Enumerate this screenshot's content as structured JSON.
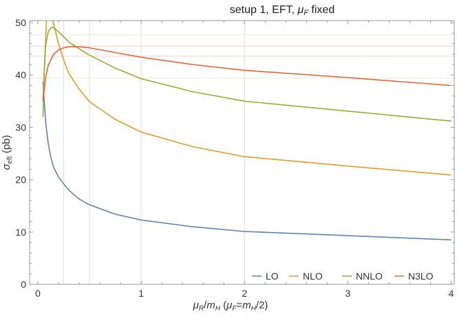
{
  "chart_data": {
    "type": "line",
    "title": {
      "main": "setup 1, EFT, ",
      "mu": "μ",
      "sub": "F",
      "tail": " fixed"
    },
    "xlabel": {
      "mu": "μ",
      "r": "R",
      "slash": "/",
      "m": "m",
      "h": "H",
      "open": " (",
      "mu2": "μ",
      "f": "F",
      "eq": "=",
      "m2": "m",
      "h2": "H",
      "tail": "/2)"
    },
    "ylabel": {
      "sigma": "σ",
      "sub": "eft",
      "unit": " (pb)"
    },
    "xlim": [
      -0.08,
      4.03
    ],
    "ylim": [
      0,
      50.4
    ],
    "xticks": [
      "0",
      "1",
      "2",
      "3",
      "4"
    ],
    "yticks": [
      "0",
      "10",
      "20",
      "30",
      "40",
      "50"
    ],
    "grid": false,
    "reference_lines": {
      "vertical": [
        0.25,
        0.5,
        1,
        2
      ],
      "horizontal": [
        {
          "y": 47.7,
          "color": "#e8ecd8"
        },
        {
          "y": 45.5,
          "color": "#fbd6cc"
        },
        {
          "y": 43.6,
          "color": "#fbd6cc"
        },
        {
          "y": 39.4,
          "color": "#e8ecd8"
        }
      ]
    },
    "legend_position": "bottom-right",
    "series": [
      {
        "name": "LO",
        "color": "#5e81b5",
        "x": [
          0.05,
          0.075,
          0.1,
          0.125,
          0.15,
          0.2,
          0.25,
          0.3,
          0.4,
          0.5,
          0.75,
          1,
          1.5,
          2,
          3,
          4
        ],
        "y": [
          38.7,
          31,
          27,
          24.3,
          22.5,
          20.5,
          19.2,
          18,
          16.3,
          15.2,
          13.4,
          12.3,
          11,
          10.1,
          9.3,
          8.5
        ]
      },
      {
        "name": "NLO",
        "color": "#e19c24",
        "x": [
          0.05,
          0.1,
          0.15,
          0.2,
          0.25,
          0.3,
          0.4,
          0.5,
          0.75,
          1,
          1.5,
          2,
          3,
          4
        ],
        "y": [
          35.5,
          58,
          50,
          46,
          42.9,
          40.3,
          37.3,
          34.9,
          31.5,
          29.1,
          26.3,
          24.4,
          22.6,
          20.9
        ]
      },
      {
        "name": "NNLO",
        "color": "#8fb032",
        "x": [
          0.05,
          0.06,
          0.075,
          0.1,
          0.125,
          0.15,
          0.2,
          0.25,
          0.3,
          0.4,
          0.5,
          0.75,
          1,
          1.5,
          2,
          3,
          4
        ],
        "y": [
          32,
          40,
          45.5,
          48.3,
          49,
          49.1,
          48.3,
          47.3,
          46.3,
          45,
          43.8,
          41.3,
          39.3,
          36.8,
          35,
          33.1,
          31.2
        ]
      },
      {
        "name": "N3LO",
        "color": "#eb6235",
        "x": [
          0.05,
          0.075,
          0.1,
          0.15,
          0.2,
          0.25,
          0.3,
          0.4,
          0.5,
          0.75,
          1,
          1.5,
          2,
          3,
          4
        ],
        "y": [
          35,
          39.5,
          41.8,
          43.9,
          44.8,
          45.2,
          45.4,
          45.4,
          45.2,
          44.3,
          43.4,
          42,
          40.9,
          39.5,
          38
        ]
      }
    ]
  }
}
